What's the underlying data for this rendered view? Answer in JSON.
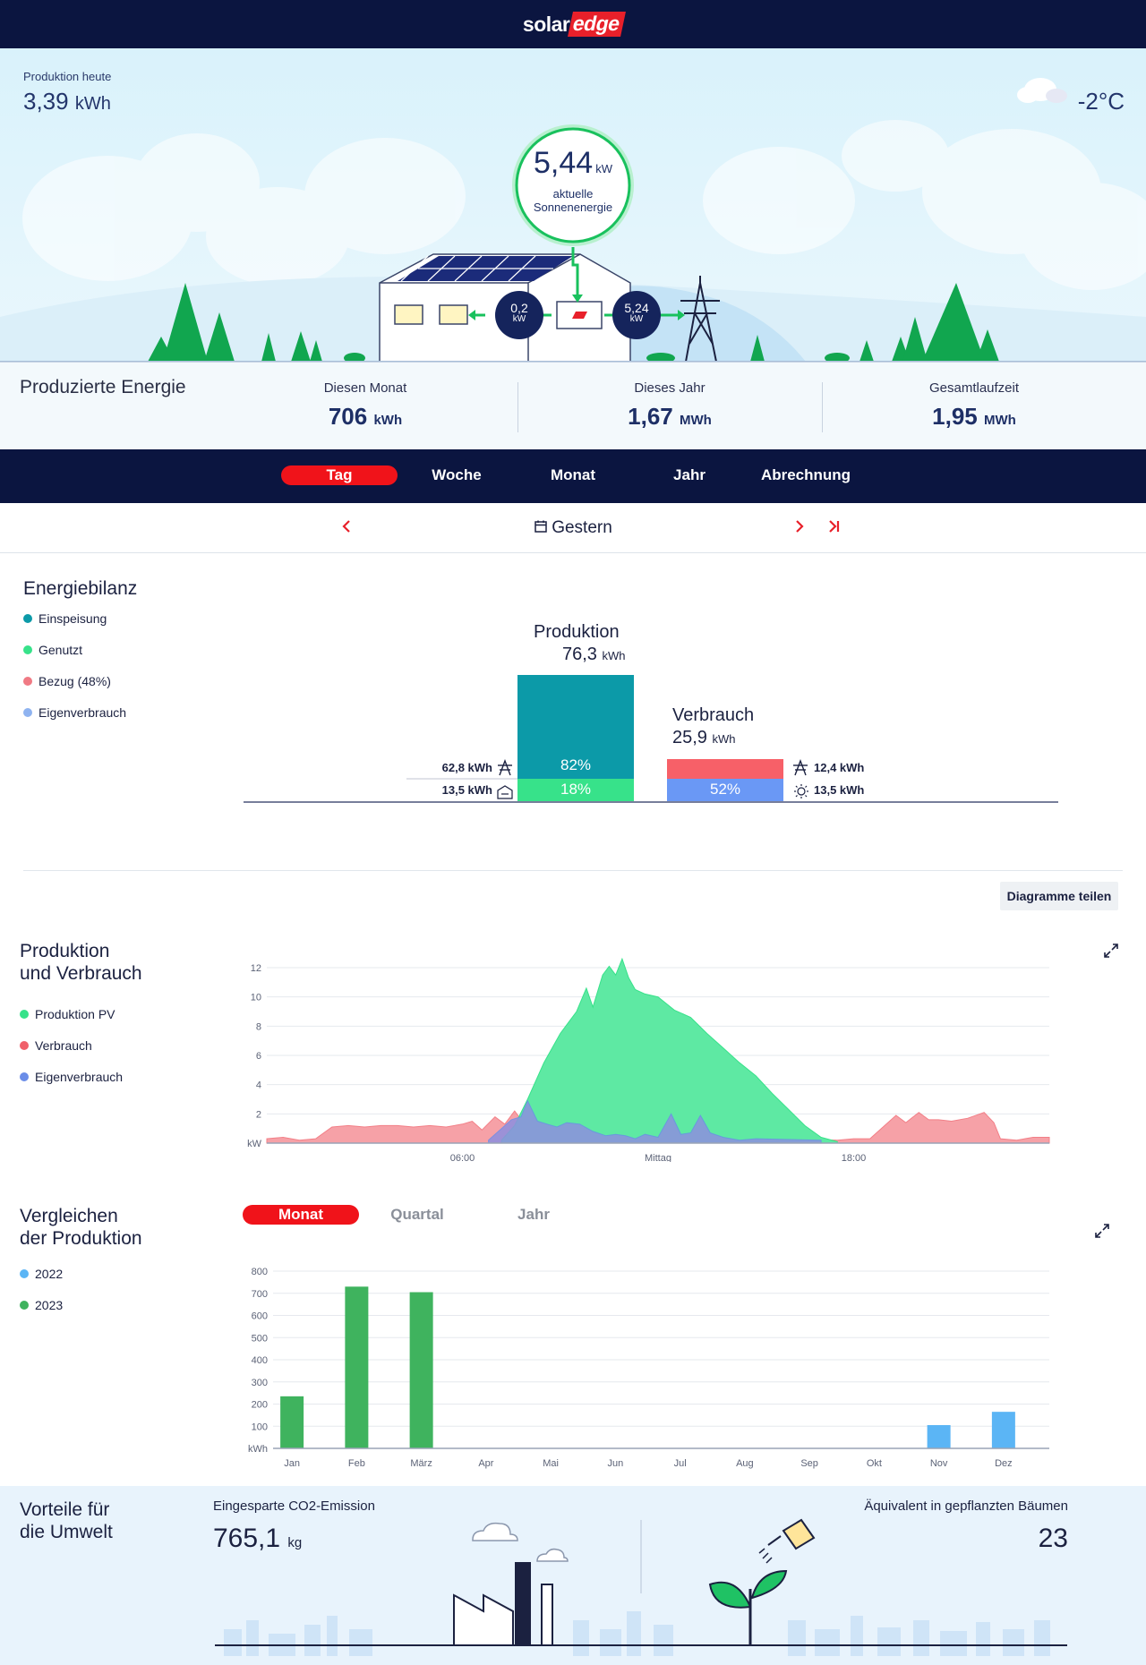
{
  "header": {
    "logo_left": "solar",
    "logo_right": "edge"
  },
  "hero": {
    "production_today_label": "Produktion heute",
    "production_today_value": "3,39",
    "production_today_unit": "kWh",
    "temperature": "-2°C",
    "current_power_value": "5,44",
    "current_power_unit": "kW",
    "current_power_label1": "aktuelle",
    "current_power_label2": "Sonnenenergie",
    "home_flow_value": "0,2",
    "home_flow_unit": "kW",
    "grid_flow_value": "5,24",
    "grid_flow_unit": "kW"
  },
  "summary": {
    "title": "Produzierte Energie",
    "stats": [
      {
        "label": "Diesen Monat",
        "value": "706",
        "unit": "kWh"
      },
      {
        "label": "Dieses Jahr",
        "value": "1,67",
        "unit": "MWh"
      },
      {
        "label": "Gesamtlaufzeit",
        "value": "1,95",
        "unit": "MWh"
      }
    ]
  },
  "tabs": [
    "Tag",
    "Woche",
    "Monat",
    "Jahr",
    "Abrechnung"
  ],
  "active_tab": "Tag",
  "date_nav": {
    "label": "Gestern"
  },
  "energy_balance": {
    "title": "Energiebilanz",
    "legend": [
      {
        "label": "Einspeisung",
        "color": "#0c9aa8"
      },
      {
        "label": "Genutzt",
        "color": "#37e28a"
      },
      {
        "label": "Bezug (48%)",
        "color": "#f07a84"
      },
      {
        "label": "Eigenverbrauch",
        "color": "#8fb3f0"
      }
    ],
    "production_title": "Produktion",
    "production_value": "76,3",
    "production_unit": "kWh",
    "production_feed_pct": "82%",
    "production_used_pct": "18%",
    "production_feed_kwh": "62,8 kWh",
    "production_used_kwh": "13,5 kWh",
    "consumption_title": "Verbrauch",
    "consumption_value": "25,9",
    "consumption_unit": "kWh",
    "consumption_self_pct": "52%",
    "consumption_grid_kwh": "12,4 kWh",
    "consumption_self_kwh": "13,5 kWh",
    "share_button": "Diagramme teilen"
  },
  "prod_cons_chart": {
    "title_line1": "Produktion",
    "title_line2": "und Verbrauch",
    "legend": [
      {
        "label": "Produktion PV",
        "color": "#37e28a"
      },
      {
        "label": "Verbrauch",
        "color": "#f0606a"
      },
      {
        "label": "Eigenverbrauch",
        "color": "#6a8de8"
      }
    ]
  },
  "compare": {
    "title_line1": "Vergleichen",
    "title_line2": "der Produktion",
    "tabs": [
      "Monat",
      "Quartal",
      "Jahr"
    ],
    "legend": [
      {
        "label": "2022",
        "color": "#5bb5f5"
      },
      {
        "label": "2023",
        "color": "#3fb35e"
      }
    ]
  },
  "environment": {
    "title_line1": "Vorteile für",
    "title_line2": "die Umwelt",
    "co2_label": "Eingesparte CO2-Emission",
    "co2_value": "765,1",
    "co2_unit": "kg",
    "trees_label": "Äquivalent in gepflanzten Bäumen",
    "trees_value": "23"
  },
  "chart_data": [
    {
      "type": "area",
      "ylabel": "kW",
      "ylim": [
        0,
        12
      ],
      "yticks": [
        2,
        4,
        6,
        8,
        10,
        12
      ],
      "xticks": [
        "06:00",
        "Mittag",
        "18:00"
      ],
      "xtick_hours": [
        6,
        12,
        18
      ],
      "grid": true,
      "series": [
        {
          "name": "Produktion PV",
          "color": "#37e28a",
          "x": [
            7.2,
            7.6,
            8.0,
            8.5,
            9.0,
            9.5,
            9.8,
            10.0,
            10.3,
            10.5,
            10.7,
            10.9,
            11.1,
            11.3,
            11.6,
            12.0,
            12.5,
            13.0,
            13.5,
            14.0,
            14.5,
            15.0,
            15.5,
            16.0,
            16.5,
            17.0,
            17.5
          ],
          "y": [
            0.2,
            1.2,
            3.0,
            5.5,
            7.5,
            9.0,
            10.6,
            9.3,
            11.5,
            12.1,
            11.5,
            12.6,
            11.3,
            10.5,
            10.2,
            10.0,
            9.1,
            8.6,
            7.5,
            6.5,
            5.5,
            4.6,
            3.4,
            2.3,
            1.2,
            0.4,
            0.1
          ]
        },
        {
          "name": "Verbrauch",
          "color": "#f0606a",
          "x": [
            0,
            0.5,
            1.0,
            1.5,
            2.0,
            2.5,
            3.0,
            3.5,
            4.0,
            4.5,
            5.0,
            5.5,
            6.0,
            6.3,
            6.6,
            7.0,
            7.3,
            7.6,
            8.0,
            17.5,
            18.0,
            18.5,
            19.0,
            19.3,
            19.6,
            20.0,
            20.3,
            20.6,
            21.0,
            21.5,
            22.0,
            22.3,
            22.5,
            23.0,
            23.5,
            24.0
          ],
          "y": [
            0.3,
            0.4,
            0.2,
            0.3,
            1.1,
            1.2,
            1.1,
            1.2,
            1.2,
            1.1,
            1.2,
            1.1,
            1.3,
            1.5,
            0.9,
            1.8,
            1.3,
            2.2,
            1.0,
            0.2,
            0.3,
            0.3,
            1.3,
            1.9,
            1.4,
            2.1,
            1.6,
            1.6,
            1.5,
            1.7,
            2.1,
            1.4,
            0.3,
            0.2,
            0.4,
            0.4
          ]
        },
        {
          "name": "Eigenverbrauch",
          "color": "#6a8de8",
          "x": [
            6.8,
            7.2,
            7.5,
            7.8,
            8.0,
            8.3,
            8.6,
            8.9,
            9.2,
            9.6,
            10.0,
            10.4,
            10.7,
            11.0,
            11.3,
            11.6,
            12.0,
            12.4,
            12.7,
            13.0,
            13.3,
            13.6,
            14.0,
            14.5,
            15.0,
            17.0
          ],
          "y": [
            0.2,
            1.0,
            1.6,
            1.8,
            2.9,
            1.5,
            1.3,
            1.1,
            1.4,
            1.3,
            0.8,
            0.5,
            0.6,
            0.5,
            0.3,
            0.6,
            0.4,
            2.0,
            0.6,
            0.7,
            1.9,
            0.7,
            0.4,
            0.2,
            0.3,
            0.2
          ]
        }
      ]
    },
    {
      "type": "bar",
      "ylabel": "kWh",
      "ylim": [
        0,
        800
      ],
      "yticks": [
        100,
        200,
        300,
        400,
        500,
        600,
        700,
        800
      ],
      "categories": [
        "Jan",
        "Feb",
        "März",
        "Apr",
        "Mai",
        "Jun",
        "Jul",
        "Aug",
        "Sep",
        "Okt",
        "Nov",
        "Dez"
      ],
      "grid": true,
      "series": [
        {
          "name": "2023",
          "color": "#3fb35e",
          "values": [
            235,
            730,
            705,
            0,
            0,
            0,
            0,
            0,
            0,
            0,
            0,
            0
          ]
        },
        {
          "name": "2022",
          "color": "#5bb5f5",
          "values": [
            0,
            0,
            0,
            0,
            0,
            0,
            0,
            0,
            0,
            0,
            105,
            165
          ]
        }
      ]
    },
    {
      "type": "bar",
      "title": "Energiebilanz",
      "categories": [
        "Produktion",
        "Verbrauch"
      ],
      "series": [
        {
          "name": "Einspeisung",
          "values": [
            62.8,
            0
          ]
        },
        {
          "name": "Genutzt",
          "values": [
            13.5,
            0
          ]
        },
        {
          "name": "Bezug (48%)",
          "values": [
            0,
            12.4
          ]
        },
        {
          "name": "Eigenverbrauch",
          "values": [
            0,
            13.5
          ]
        }
      ]
    }
  ]
}
